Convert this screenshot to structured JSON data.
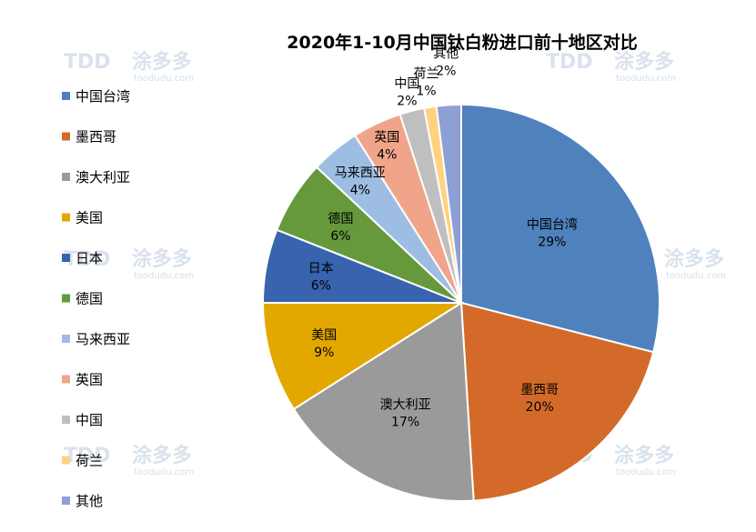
{
  "chart_data": {
    "type": "pie",
    "title": "2020年1-10月中国钛白粉进口前十地区对比",
    "slices": [
      {
        "label": "中国台湾",
        "value": 29,
        "pct_label": "29%",
        "color": "#4f81bd"
      },
      {
        "label": "墨西哥",
        "value": 20,
        "pct_label": "20%",
        "color": "#d46a2a"
      },
      {
        "label": "澳大利亚",
        "value": 17,
        "pct_label": "17%",
        "color": "#9a9a9a"
      },
      {
        "label": "美国",
        "value": 9,
        "pct_label": "9%",
        "color": "#e3a800"
      },
      {
        "label": "日本",
        "value": 6,
        "pct_label": "6%",
        "color": "#3863ae"
      },
      {
        "label": "德国",
        "value": 6,
        "pct_label": "6%",
        "color": "#66993c"
      },
      {
        "label": "马来西亚",
        "value": 4,
        "pct_label": "4%",
        "color": "#9dbde3"
      },
      {
        "label": "英国",
        "value": 4,
        "pct_label": "4%",
        "color": "#f0a58a"
      },
      {
        "label": "中国",
        "value": 2,
        "pct_label": "2%",
        "color": "#bfbfbf"
      },
      {
        "label": "荷兰",
        "value": 1,
        "pct_label": "1%",
        "color": "#ffd27f"
      },
      {
        "label": "其他",
        "value": 2,
        "pct_label": "2%",
        "color": "#8e9fd6"
      }
    ],
    "legend_position": "left"
  },
  "watermark": {
    "logo": "TDD",
    "brand": "涂多多",
    "site": "toodudu.com"
  }
}
